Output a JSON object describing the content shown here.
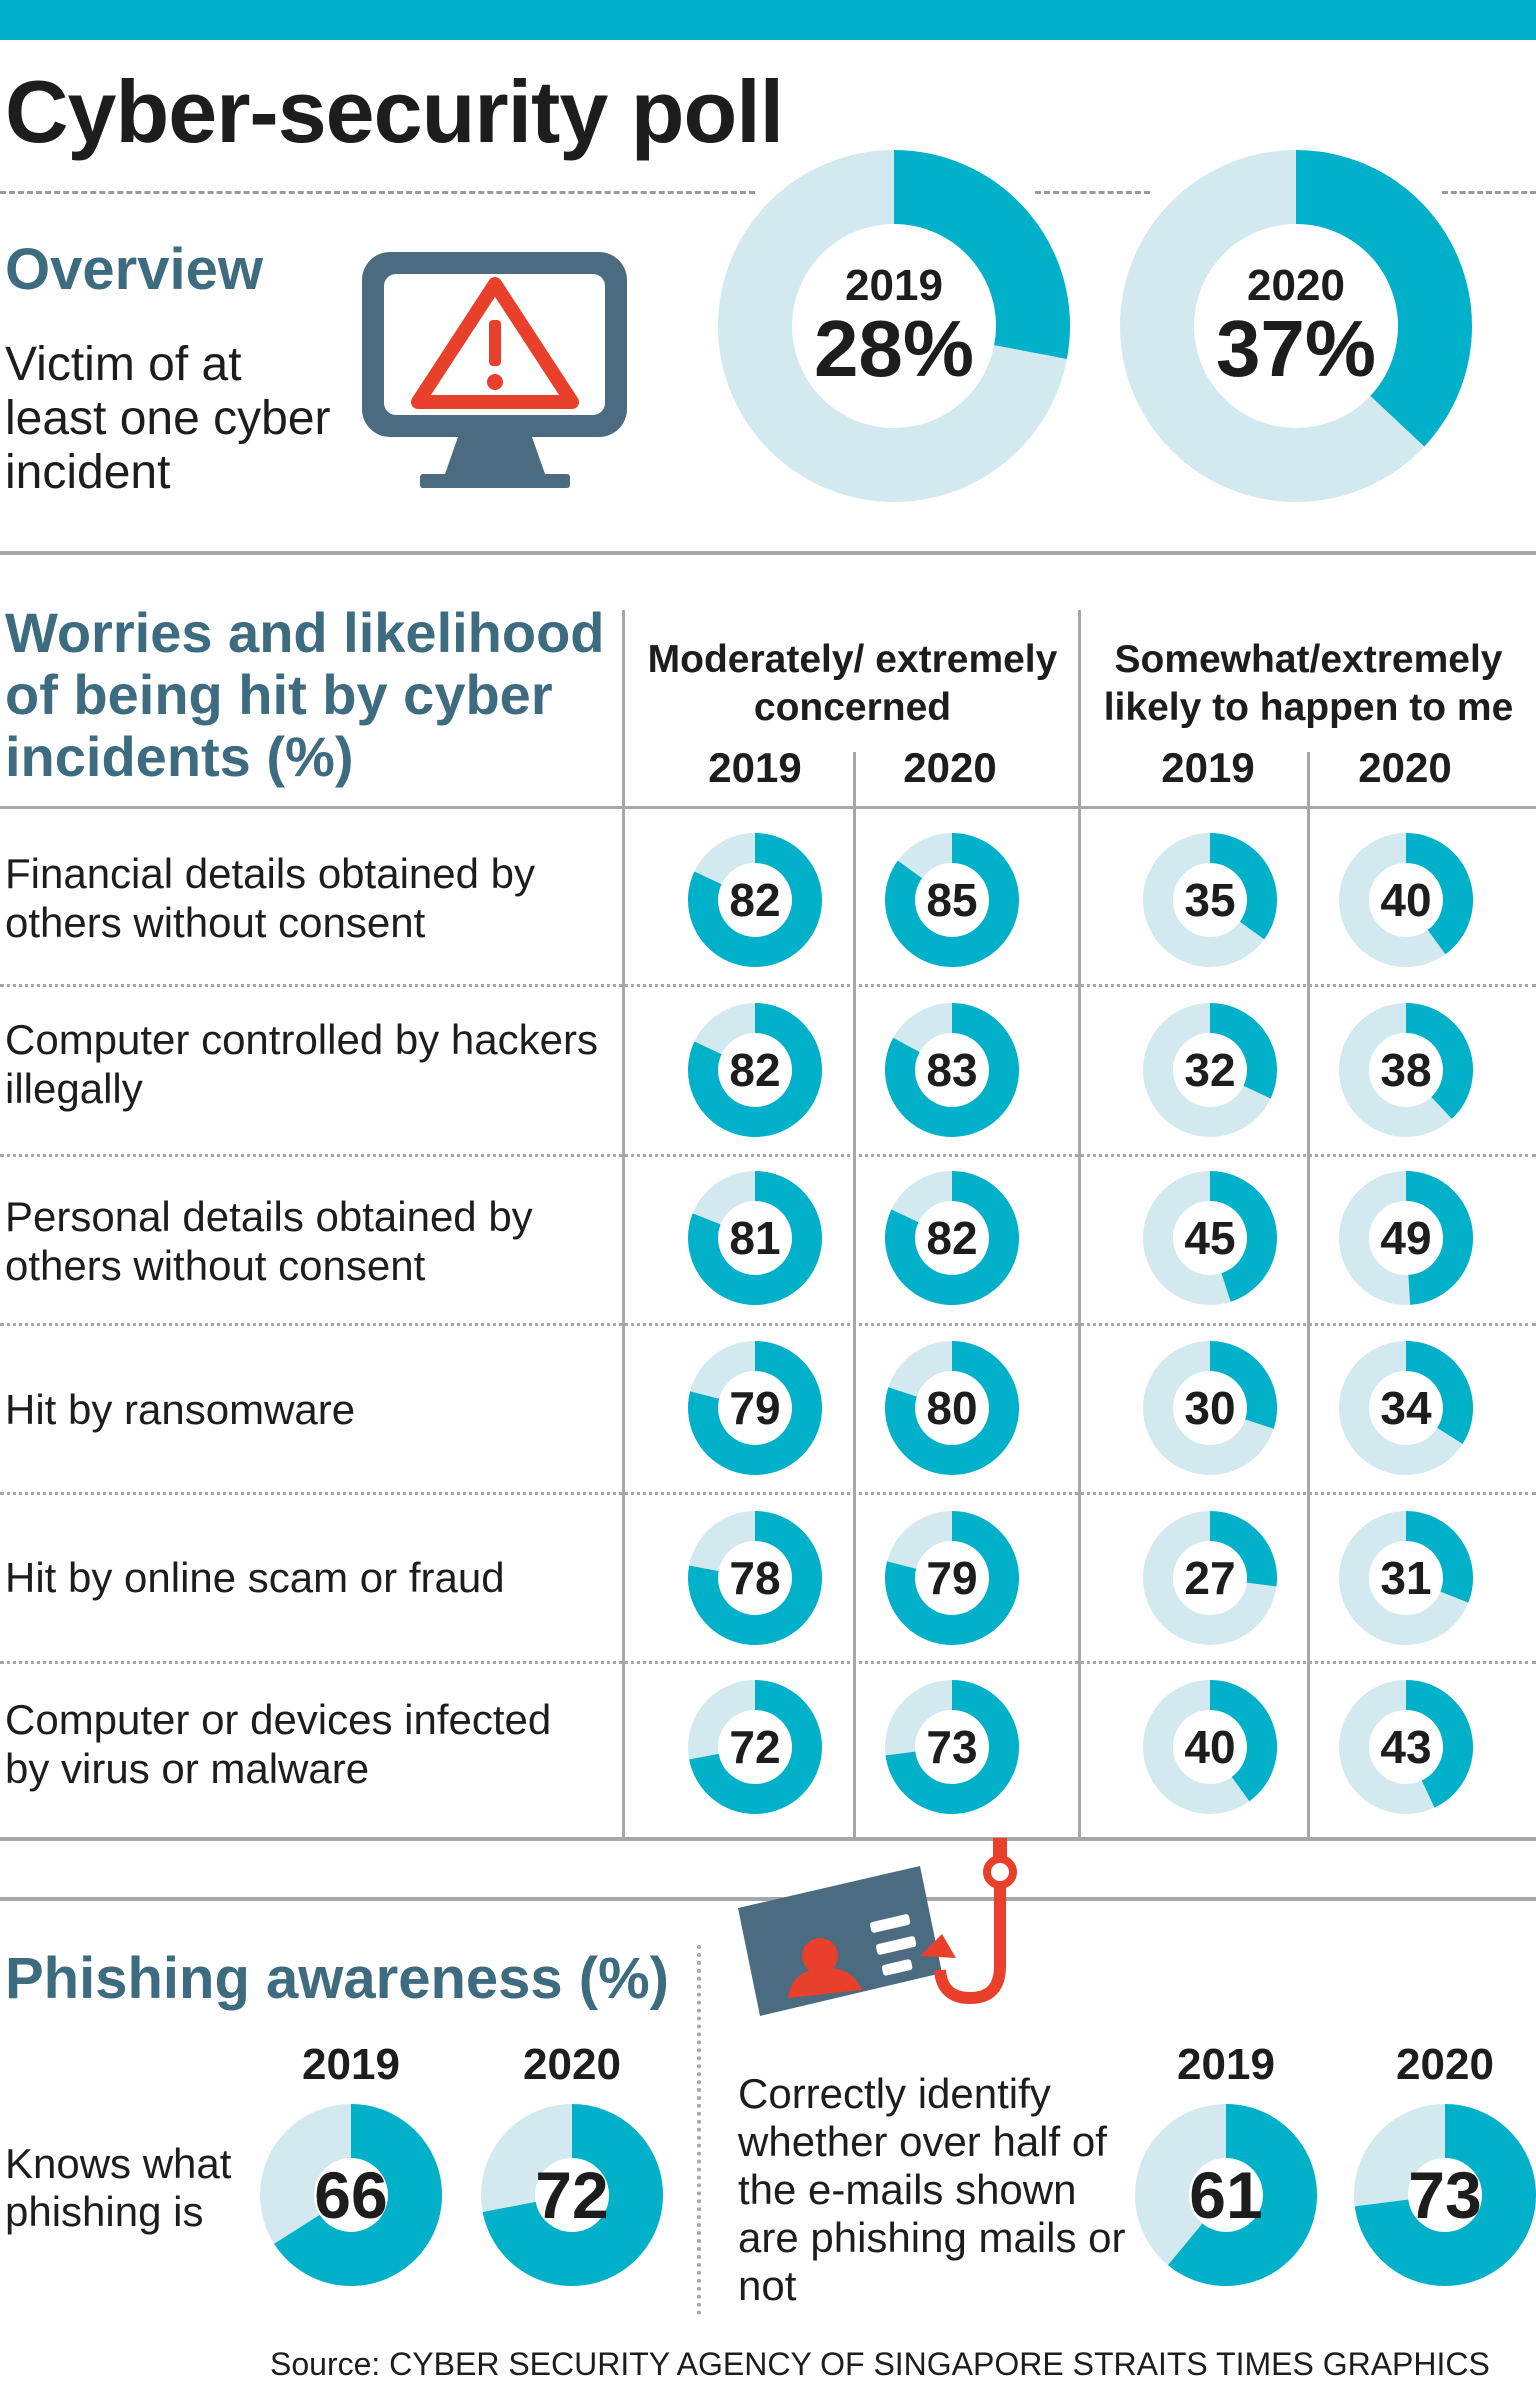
{
  "title": "Cyber-security poll",
  "overview": {
    "heading": "Overview",
    "label": "Victim of at least one cyber incident",
    "icon": "warning-monitor-icon"
  },
  "worries": {
    "heading": "Worries and likelihood of being hit by cyber incidents (%)",
    "col_concerned": "Moderately/ extremely concerned",
    "col_likely": "Somewhat/extremely likely to happen to me",
    "years": [
      "2019",
      "2020"
    ]
  },
  "phishing": {
    "heading": "Phishing awareness (%)",
    "knows_label": "Knows what phishing is",
    "correct_label": "Correctly identify whether over half of the e-mails shown are phishing mails or not",
    "icon": "phishing-hook-id-card-icon"
  },
  "source": "Source: CYBER SECURITY AGENCY OF SINGAPORE   STRAITS TIMES GRAPHICS",
  "colors": {
    "accent": "#00b1c9",
    "light": "#d3e9f0",
    "heading": "#3d6b80",
    "icon_dark": "#4b6b80",
    "icon_red": "#e8402a"
  },
  "chart_data": [
    {
      "type": "pie",
      "title": "Victim of at least one cyber incident",
      "categories": [
        "2019",
        "2020"
      ],
      "values": [
        28,
        37
      ],
      "value_labels": [
        "28%",
        "37%"
      ]
    },
    {
      "type": "table",
      "title": "Worries and likelihood of being hit by cyber incidents (%)",
      "categories": [
        "Financial details obtained by others without consent",
        "Computer controlled by hackers illegally",
        "Personal details obtained by others without consent",
        "Hit by ransomware",
        "Hit by online scam or fraud",
        "Computer or devices infected by virus or malware"
      ],
      "series": [
        {
          "group": "Moderately/ extremely concerned",
          "year": "2019",
          "values": [
            82,
            82,
            81,
            79,
            78,
            72
          ]
        },
        {
          "group": "Moderately/ extremely concerned",
          "year": "2020",
          "values": [
            85,
            83,
            82,
            80,
            79,
            73
          ]
        },
        {
          "group": "Somewhat/extremely likely to happen to me",
          "year": "2019",
          "values": [
            35,
            32,
            45,
            30,
            27,
            40
          ]
        },
        {
          "group": "Somewhat/extremely likely to happen to me",
          "year": "2020",
          "values": [
            40,
            38,
            49,
            34,
            31,
            43
          ]
        }
      ]
    },
    {
      "type": "pie",
      "title": "Knows what phishing is",
      "categories": [
        "2019",
        "2020"
      ],
      "values": [
        66,
        72
      ]
    },
    {
      "type": "pie",
      "title": "Correctly identify whether over half of the e-mails shown are phishing mails or not",
      "categories": [
        "2019",
        "2020"
      ],
      "values": [
        61,
        73
      ]
    }
  ]
}
